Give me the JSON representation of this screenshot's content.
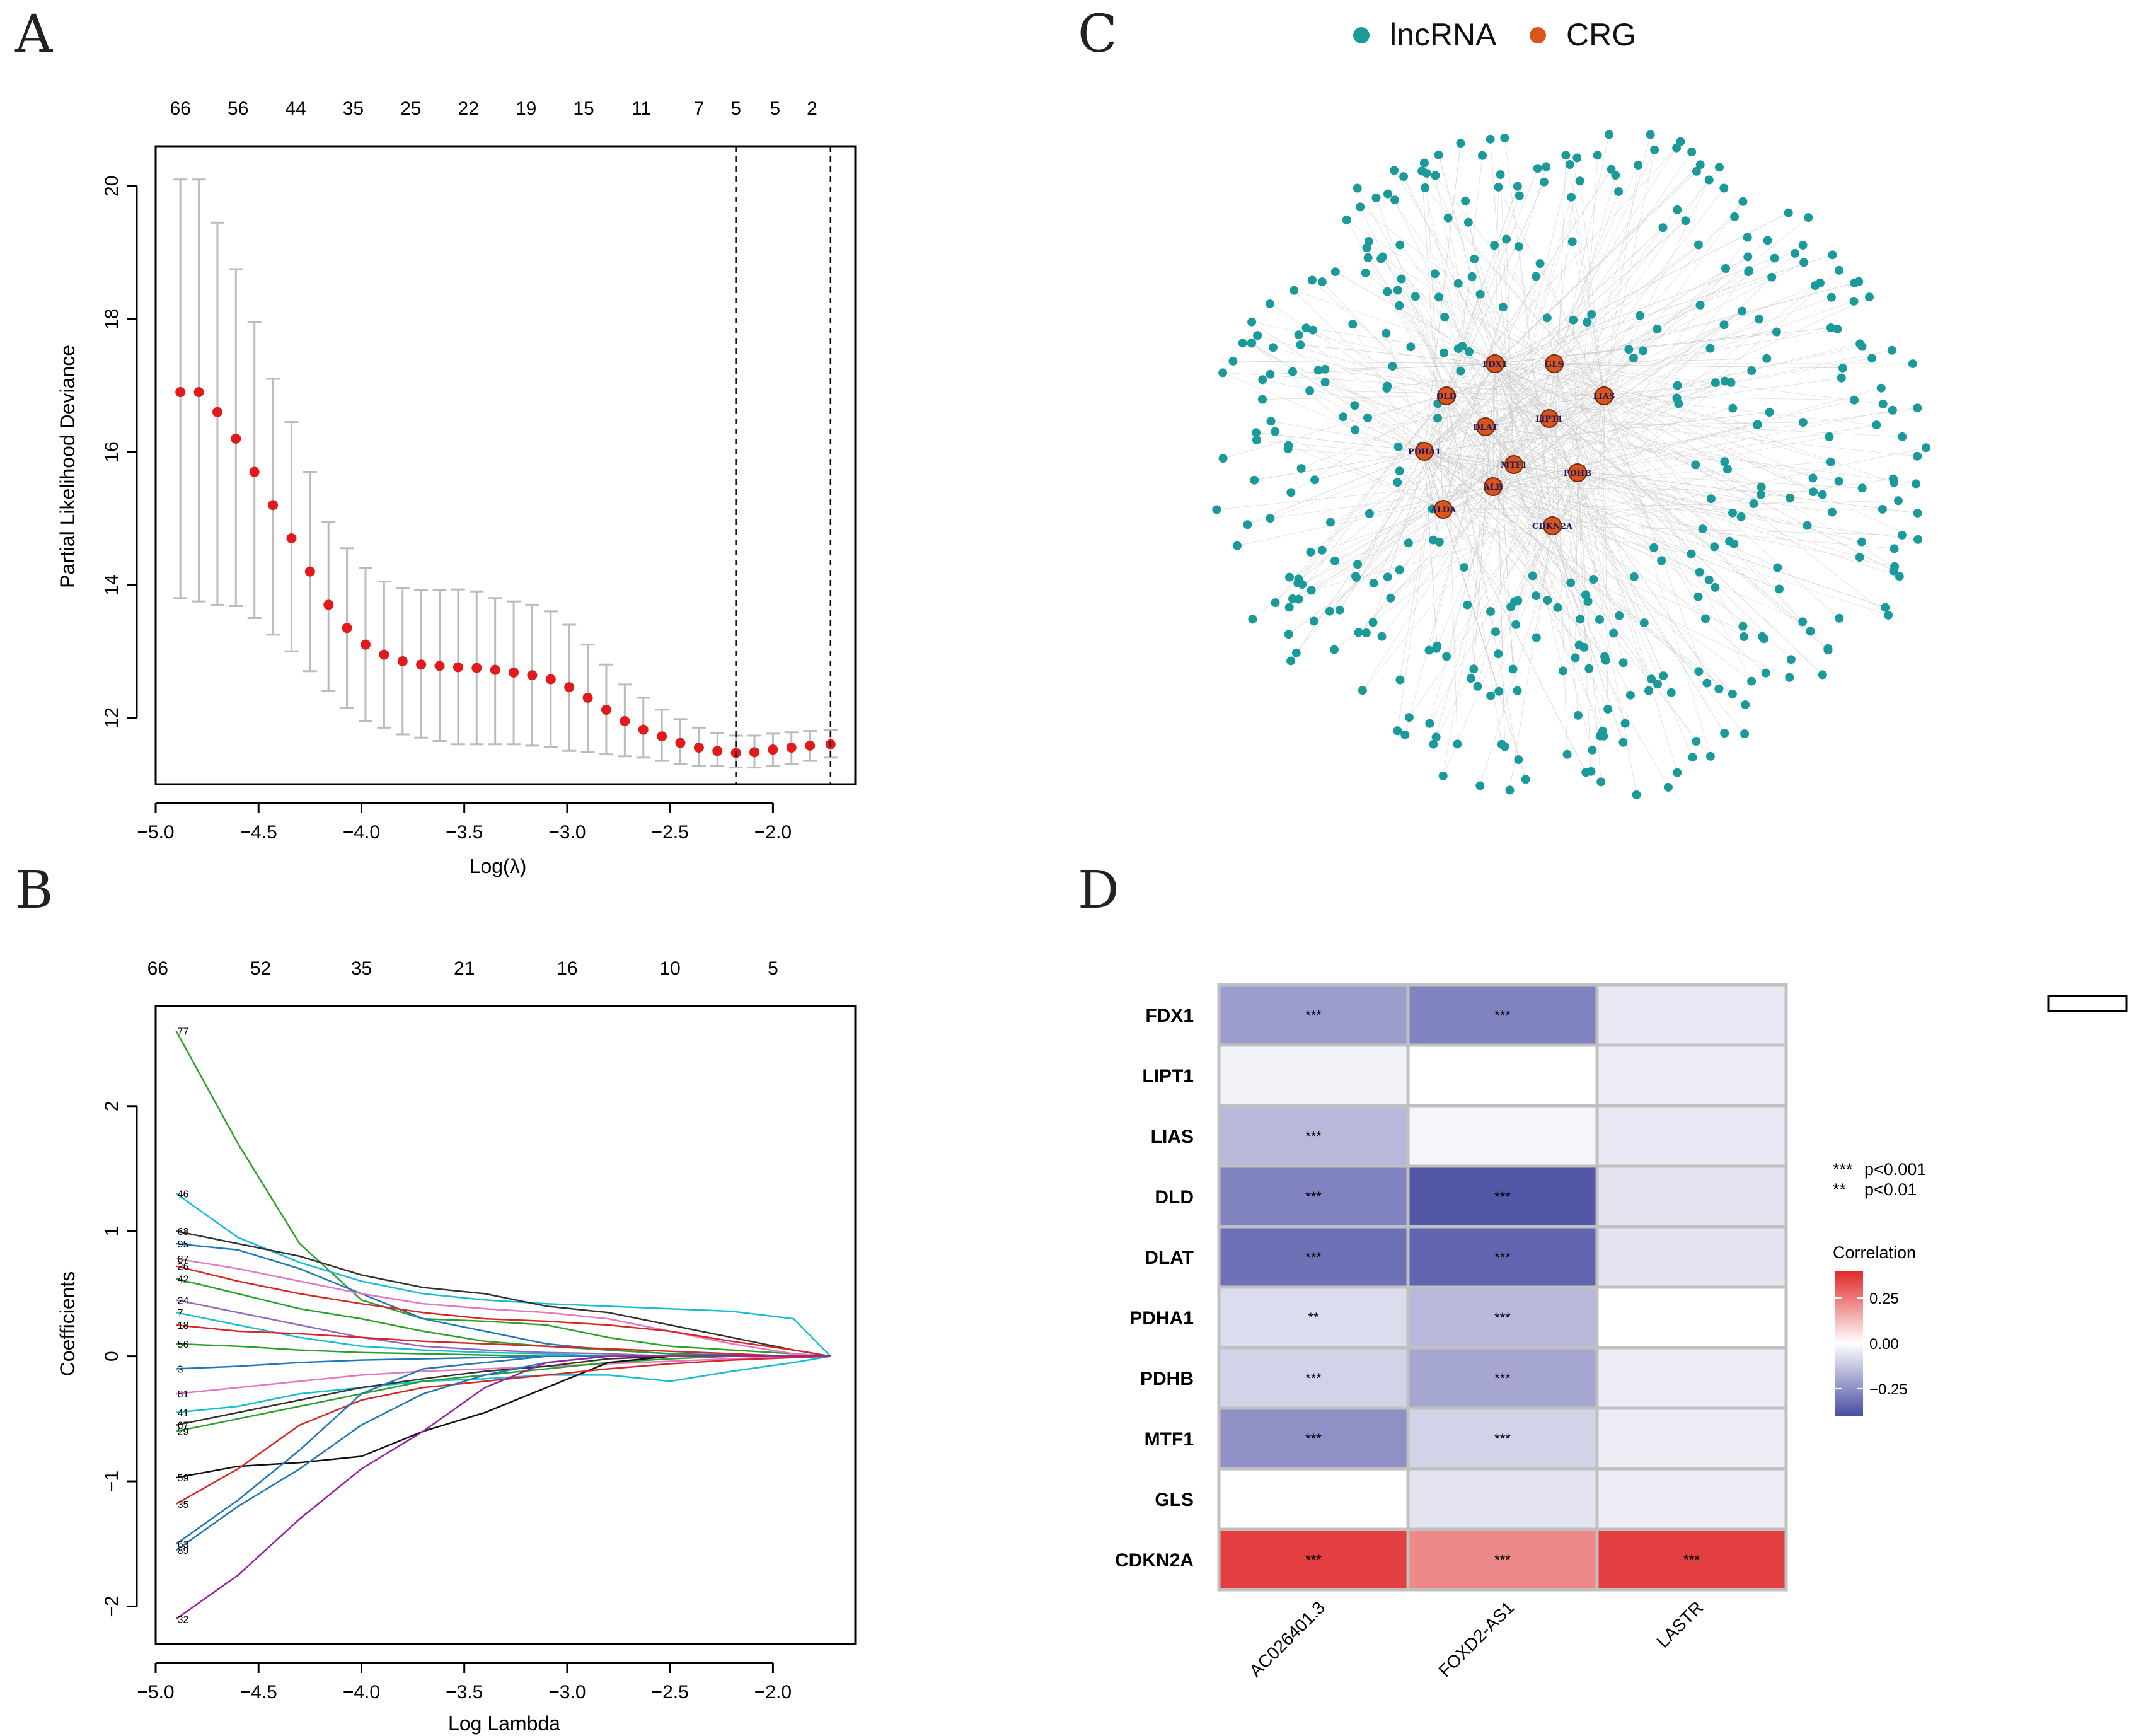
{
  "panel_labels": {
    "a": "A",
    "b": "B",
    "c": "C",
    "d": "D"
  },
  "colors": {
    "red_point": "#e31a1c",
    "errbar": "#bbbbbb",
    "lncrna": "#1a9a9a",
    "crg": "#d9541e",
    "low": "#4a4ea3",
    "mid": "#ffffff",
    "high": "#e0282b"
  },
  "chart_data": [
    {
      "id": "A",
      "type": "scatter",
      "title": "",
      "xlabel": "Log(λ)",
      "ylabel": "Partial Likelihood Deviance",
      "xlim": [
        -5.0,
        -1.6
      ],
      "ylim": [
        11.0,
        20.6
      ],
      "x_ticks": [
        -5.0,
        -4.5,
        -4.0,
        -3.5,
        -3.0,
        -2.5,
        -2.0
      ],
      "x_tick_labels": [
        "−5.0",
        "−4.5",
        "−4.0",
        "−3.5",
        "−3.0",
        "−2.5",
        "−2.0"
      ],
      "y_ticks": [
        12,
        14,
        16,
        18,
        20
      ],
      "y_tick_labels": [
        "12",
        "14",
        "16",
        "18",
        "20"
      ],
      "top_labels": [
        "66",
        "56",
        "44",
        "35",
        "25",
        "22",
        "19",
        "15",
        "11",
        "7",
        "5",
        "5",
        "2"
      ],
      "top_label_x": [
        -4.88,
        -4.6,
        -4.32,
        -4.04,
        -3.76,
        -3.48,
        -3.2,
        -2.92,
        -2.64,
        -2.36,
        -2.18,
        -1.99,
        -1.81
      ],
      "vlines": [
        -2.18,
        -1.72
      ],
      "x": [
        -4.88,
        -4.79,
        -4.7,
        -4.61,
        -4.52,
        -4.43,
        -4.34,
        -4.25,
        -4.16,
        -4.07,
        -3.98,
        -3.89,
        -3.8,
        -3.71,
        -3.62,
        -3.53,
        -3.44,
        -3.35,
        -3.26,
        -3.17,
        -3.08,
        -2.99,
        -2.9,
        -2.81,
        -2.72,
        -2.63,
        -2.54,
        -2.45,
        -2.36,
        -2.27,
        -2.18,
        -2.09,
        -2.0,
        -1.91,
        -1.82,
        -1.72
      ],
      "y": [
        16.9,
        16.9,
        16.6,
        16.2,
        15.7,
        15.2,
        14.7,
        14.2,
        13.7,
        13.35,
        13.1,
        12.95,
        12.85,
        12.8,
        12.78,
        12.76,
        12.75,
        12.72,
        12.68,
        12.64,
        12.58,
        12.46,
        12.3,
        12.12,
        11.95,
        11.82,
        11.72,
        11.62,
        11.55,
        11.5,
        11.47,
        11.48,
        11.52,
        11.55,
        11.58,
        11.6
      ],
      "y_upper": [
        20.1,
        20.1,
        19.45,
        18.75,
        17.95,
        17.1,
        16.45,
        15.7,
        14.95,
        14.55,
        14.25,
        14.05,
        13.95,
        13.92,
        13.92,
        13.93,
        13.9,
        13.8,
        13.75,
        13.7,
        13.6,
        13.4,
        13.1,
        12.8,
        12.5,
        12.3,
        12.12,
        11.98,
        11.85,
        11.77,
        11.73,
        11.73,
        11.76,
        11.78,
        11.8,
        11.82
      ],
      "y_lower": [
        13.8,
        13.75,
        13.7,
        13.68,
        13.5,
        13.25,
        13.0,
        12.7,
        12.4,
        12.15,
        11.95,
        11.85,
        11.75,
        11.7,
        11.65,
        11.6,
        11.6,
        11.6,
        11.6,
        11.58,
        11.56,
        11.5,
        11.48,
        11.45,
        11.42,
        11.4,
        11.35,
        11.3,
        11.28,
        11.27,
        11.25,
        11.25,
        11.27,
        11.3,
        11.35,
        11.4
      ]
    },
    {
      "id": "B",
      "type": "line",
      "xlabel": "Log Lambda",
      "ylabel": "Coefficients",
      "xlim": [
        -5.0,
        -1.6
      ],
      "ylim": [
        -2.3,
        2.8
      ],
      "x_ticks": [
        -5.0,
        -4.5,
        -4.0,
        -3.5,
        -3.0,
        -2.5,
        -2.0
      ],
      "x_tick_labels": [
        "−5.0",
        "−4.5",
        "−4.0",
        "−3.5",
        "−3.0",
        "−2.5",
        "−2.0"
      ],
      "y_ticks": [
        -2,
        -1,
        0,
        1,
        2
      ],
      "y_tick_labels": [
        "−2",
        "−1",
        "0",
        "1",
        "2"
      ],
      "top_labels": [
        "66",
        "52",
        "35",
        "21",
        "16",
        "10",
        "5"
      ],
      "top_label_x": [
        -4.99,
        -4.49,
        -4.0,
        -3.5,
        -3.0,
        -2.5,
        -2.0
      ],
      "x": [
        -4.9,
        -4.6,
        -4.3,
        -4.0,
        -3.7,
        -3.4,
        -3.1,
        -2.8,
        -2.5,
        -2.2,
        -1.9,
        -1.72
      ],
      "series": [
        {
          "name": "77",
          "color": "#2ca02c",
          "values": [
            2.6,
            1.7,
            0.9,
            0.45,
            0.3,
            0.28,
            0.25,
            0.15,
            0.08,
            0.05,
            0.02,
            0.0
          ]
        },
        {
          "name": "46",
          "color": "#17becf",
          "values": [
            1.3,
            0.95,
            0.75,
            0.6,
            0.5,
            0.45,
            0.42,
            0.4,
            0.38,
            0.36,
            0.3,
            0.0
          ]
        },
        {
          "name": "68",
          "color": "#333333",
          "values": [
            1.0,
            0.9,
            0.8,
            0.65,
            0.55,
            0.5,
            0.4,
            0.35,
            0.25,
            0.15,
            0.05,
            0.0
          ]
        },
        {
          "name": "95",
          "color": "#1f77b4",
          "values": [
            0.9,
            0.85,
            0.7,
            0.5,
            0.3,
            0.2,
            0.1,
            0.05,
            0.02,
            0.01,
            0.0,
            0.0
          ]
        },
        {
          "name": "87",
          "color": "#e377c2",
          "values": [
            0.78,
            0.7,
            0.6,
            0.5,
            0.42,
            0.38,
            0.35,
            0.3,
            0.2,
            0.1,
            0.02,
            0.0
          ]
        },
        {
          "name": "26",
          "color": "#d62728",
          "values": [
            0.72,
            0.6,
            0.5,
            0.42,
            0.35,
            0.3,
            0.28,
            0.25,
            0.2,
            0.12,
            0.05,
            0.0
          ]
        },
        {
          "name": "42",
          "color": "#2ca02c",
          "values": [
            0.62,
            0.5,
            0.38,
            0.3,
            0.2,
            0.12,
            0.08,
            0.05,
            0.02,
            0.0,
            0.0,
            0.0
          ]
        },
        {
          "name": "24",
          "color": "#9467bd",
          "values": [
            0.45,
            0.35,
            0.25,
            0.15,
            0.08,
            0.05,
            0.03,
            0.02,
            0.0,
            0.0,
            0.0,
            0.0
          ]
        },
        {
          "name": "7",
          "color": "#17becf",
          "values": [
            0.35,
            0.25,
            0.15,
            0.08,
            0.05,
            0.03,
            0.02,
            0.0,
            0.0,
            0.0,
            0.0,
            0.0
          ]
        },
        {
          "name": "18",
          "color": "#d62728",
          "values": [
            0.25,
            0.2,
            0.18,
            0.15,
            0.12,
            0.1,
            0.08,
            0.06,
            0.04,
            0.02,
            0.0,
            0.0
          ]
        },
        {
          "name": "56",
          "color": "#2ca02c",
          "values": [
            0.1,
            0.08,
            0.05,
            0.03,
            0.02,
            0.01,
            0.0,
            0.0,
            0.0,
            0.0,
            0.0,
            0.0
          ]
        },
        {
          "name": "3",
          "color": "#1f77b4",
          "values": [
            -0.1,
            -0.08,
            -0.05,
            -0.03,
            -0.02,
            -0.01,
            0.0,
            0.0,
            0.0,
            0.0,
            0.0,
            0.0
          ]
        },
        {
          "name": "81",
          "color": "#e377c2",
          "values": [
            -0.3,
            -0.25,
            -0.2,
            -0.15,
            -0.12,
            -0.1,
            -0.08,
            -0.06,
            -0.04,
            -0.02,
            0.0,
            0.0
          ]
        },
        {
          "name": "41",
          "color": "#17becf",
          "values": [
            -0.45,
            -0.4,
            -0.3,
            -0.25,
            -0.2,
            -0.18,
            -0.15,
            -0.15,
            -0.2,
            -0.12,
            -0.05,
            0.0
          ]
        },
        {
          "name": "29",
          "color": "#2ca02c",
          "values": [
            -0.6,
            -0.5,
            -0.4,
            -0.3,
            -0.2,
            -0.15,
            -0.1,
            -0.05,
            -0.02,
            0.0,
            0.0,
            0.0
          ]
        },
        {
          "name": "67",
          "color": "#333333",
          "values": [
            -0.55,
            -0.45,
            -0.35,
            -0.25,
            -0.18,
            -0.12,
            -0.08,
            -0.02,
            0.0,
            0.0,
            0.0,
            0.0
          ]
        },
        {
          "name": "59",
          "color": "#111111",
          "values": [
            -0.97,
            -0.88,
            -0.85,
            -0.8,
            -0.6,
            -0.45,
            -0.25,
            -0.05,
            0.0,
            0.0,
            0.0,
            0.0
          ]
        },
        {
          "name": "35",
          "color": "#d62728",
          "values": [
            -1.18,
            -0.9,
            -0.55,
            -0.35,
            -0.25,
            -0.2,
            -0.15,
            -0.1,
            -0.06,
            -0.03,
            -0.01,
            0.0
          ]
        },
        {
          "name": "63",
          "color": "#1f77b4",
          "values": [
            -1.5,
            -1.15,
            -0.75,
            -0.3,
            -0.1,
            -0.05,
            0.0,
            0.0,
            0.0,
            0.0,
            0.0,
            0.0
          ]
        },
        {
          "name": "89",
          "color": "#1f77b4",
          "values": [
            -1.55,
            -1.2,
            -0.9,
            -0.55,
            -0.3,
            -0.15,
            -0.05,
            0.0,
            0.0,
            0.0,
            0.0,
            0.0
          ]
        },
        {
          "name": "32",
          "color": "#a020a0",
          "values": [
            -2.1,
            -1.75,
            -1.3,
            -0.9,
            -0.6,
            -0.25,
            -0.05,
            0.0,
            0.0,
            0.0,
            0.0,
            0.0
          ]
        }
      ],
      "endpoint_labels": [
        "77",
        "46",
        "68",
        "95",
        "87",
        "26",
        "42",
        "24",
        "7",
        "18",
        "56",
        "3",
        "81",
        "41",
        "29",
        "67",
        "59",
        "35",
        "63",
        "89",
        "32"
      ]
    },
    {
      "id": "C",
      "type": "network",
      "legend": [
        {
          "name": "lncRNA",
          "color": "#1a9a9a"
        },
        {
          "name": "CRG",
          "color": "#d9541e"
        }
      ],
      "hub_labels": [
        "FDX1",
        "GLS",
        "DLD",
        "LIAS",
        "DLAT",
        "LIPT1",
        "PDHA1",
        "MTF1",
        "PDHB",
        "ALB",
        "ALDA",
        "CDKN2A"
      ],
      "lncrna_node_count": 400
    },
    {
      "id": "D",
      "type": "heatmap",
      "rows": [
        "FDX1",
        "LIPT1",
        "LIAS",
        "DLD",
        "DLAT",
        "PDHA1",
        "PDHB",
        "MTF1",
        "GLS",
        "CDKN2A"
      ],
      "columns": [
        "AC026401.3",
        "FOXD2-AS1",
        "LASTR"
      ],
      "values": [
        [
          -0.22,
          -0.28,
          -0.05
        ],
        [
          -0.03,
          0.0,
          -0.04
        ],
        [
          -0.16,
          -0.02,
          -0.05
        ],
        [
          -0.28,
          -0.38,
          -0.06
        ],
        [
          -0.32,
          -0.35,
          -0.06
        ],
        [
          -0.08,
          -0.16,
          0.0
        ],
        [
          -0.1,
          -0.2,
          -0.04
        ],
        [
          -0.25,
          -0.1,
          -0.04
        ],
        [
          0.0,
          -0.06,
          -0.04
        ],
        [
          0.36,
          0.22,
          0.36
        ]
      ],
      "significance": [
        [
          "***",
          "***",
          ""
        ],
        [
          "",
          "",
          ""
        ],
        [
          "***",
          "",
          ""
        ],
        [
          "***",
          "***",
          ""
        ],
        [
          "***",
          "***",
          ""
        ],
        [
          "**",
          "***",
          ""
        ],
        [
          "***",
          "***",
          ""
        ],
        [
          "***",
          "***",
          ""
        ],
        [
          "",
          "",
          ""
        ],
        [
          "***",
          "***",
          "***"
        ]
      ],
      "sig_legend": [
        {
          "stars": "***",
          "text": "p<0.001"
        },
        {
          "stars": "**",
          "text": "p<0.01"
        }
      ],
      "colorbar_title": "Correlation",
      "colorbar_ticks": [
        0.25,
        0.0,
        -0.25
      ],
      "colorbar_tick_labels": [
        "0.25",
        "0.00",
        "−0.25"
      ],
      "colorbar_range": [
        -0.4,
        0.4
      ]
    }
  ]
}
